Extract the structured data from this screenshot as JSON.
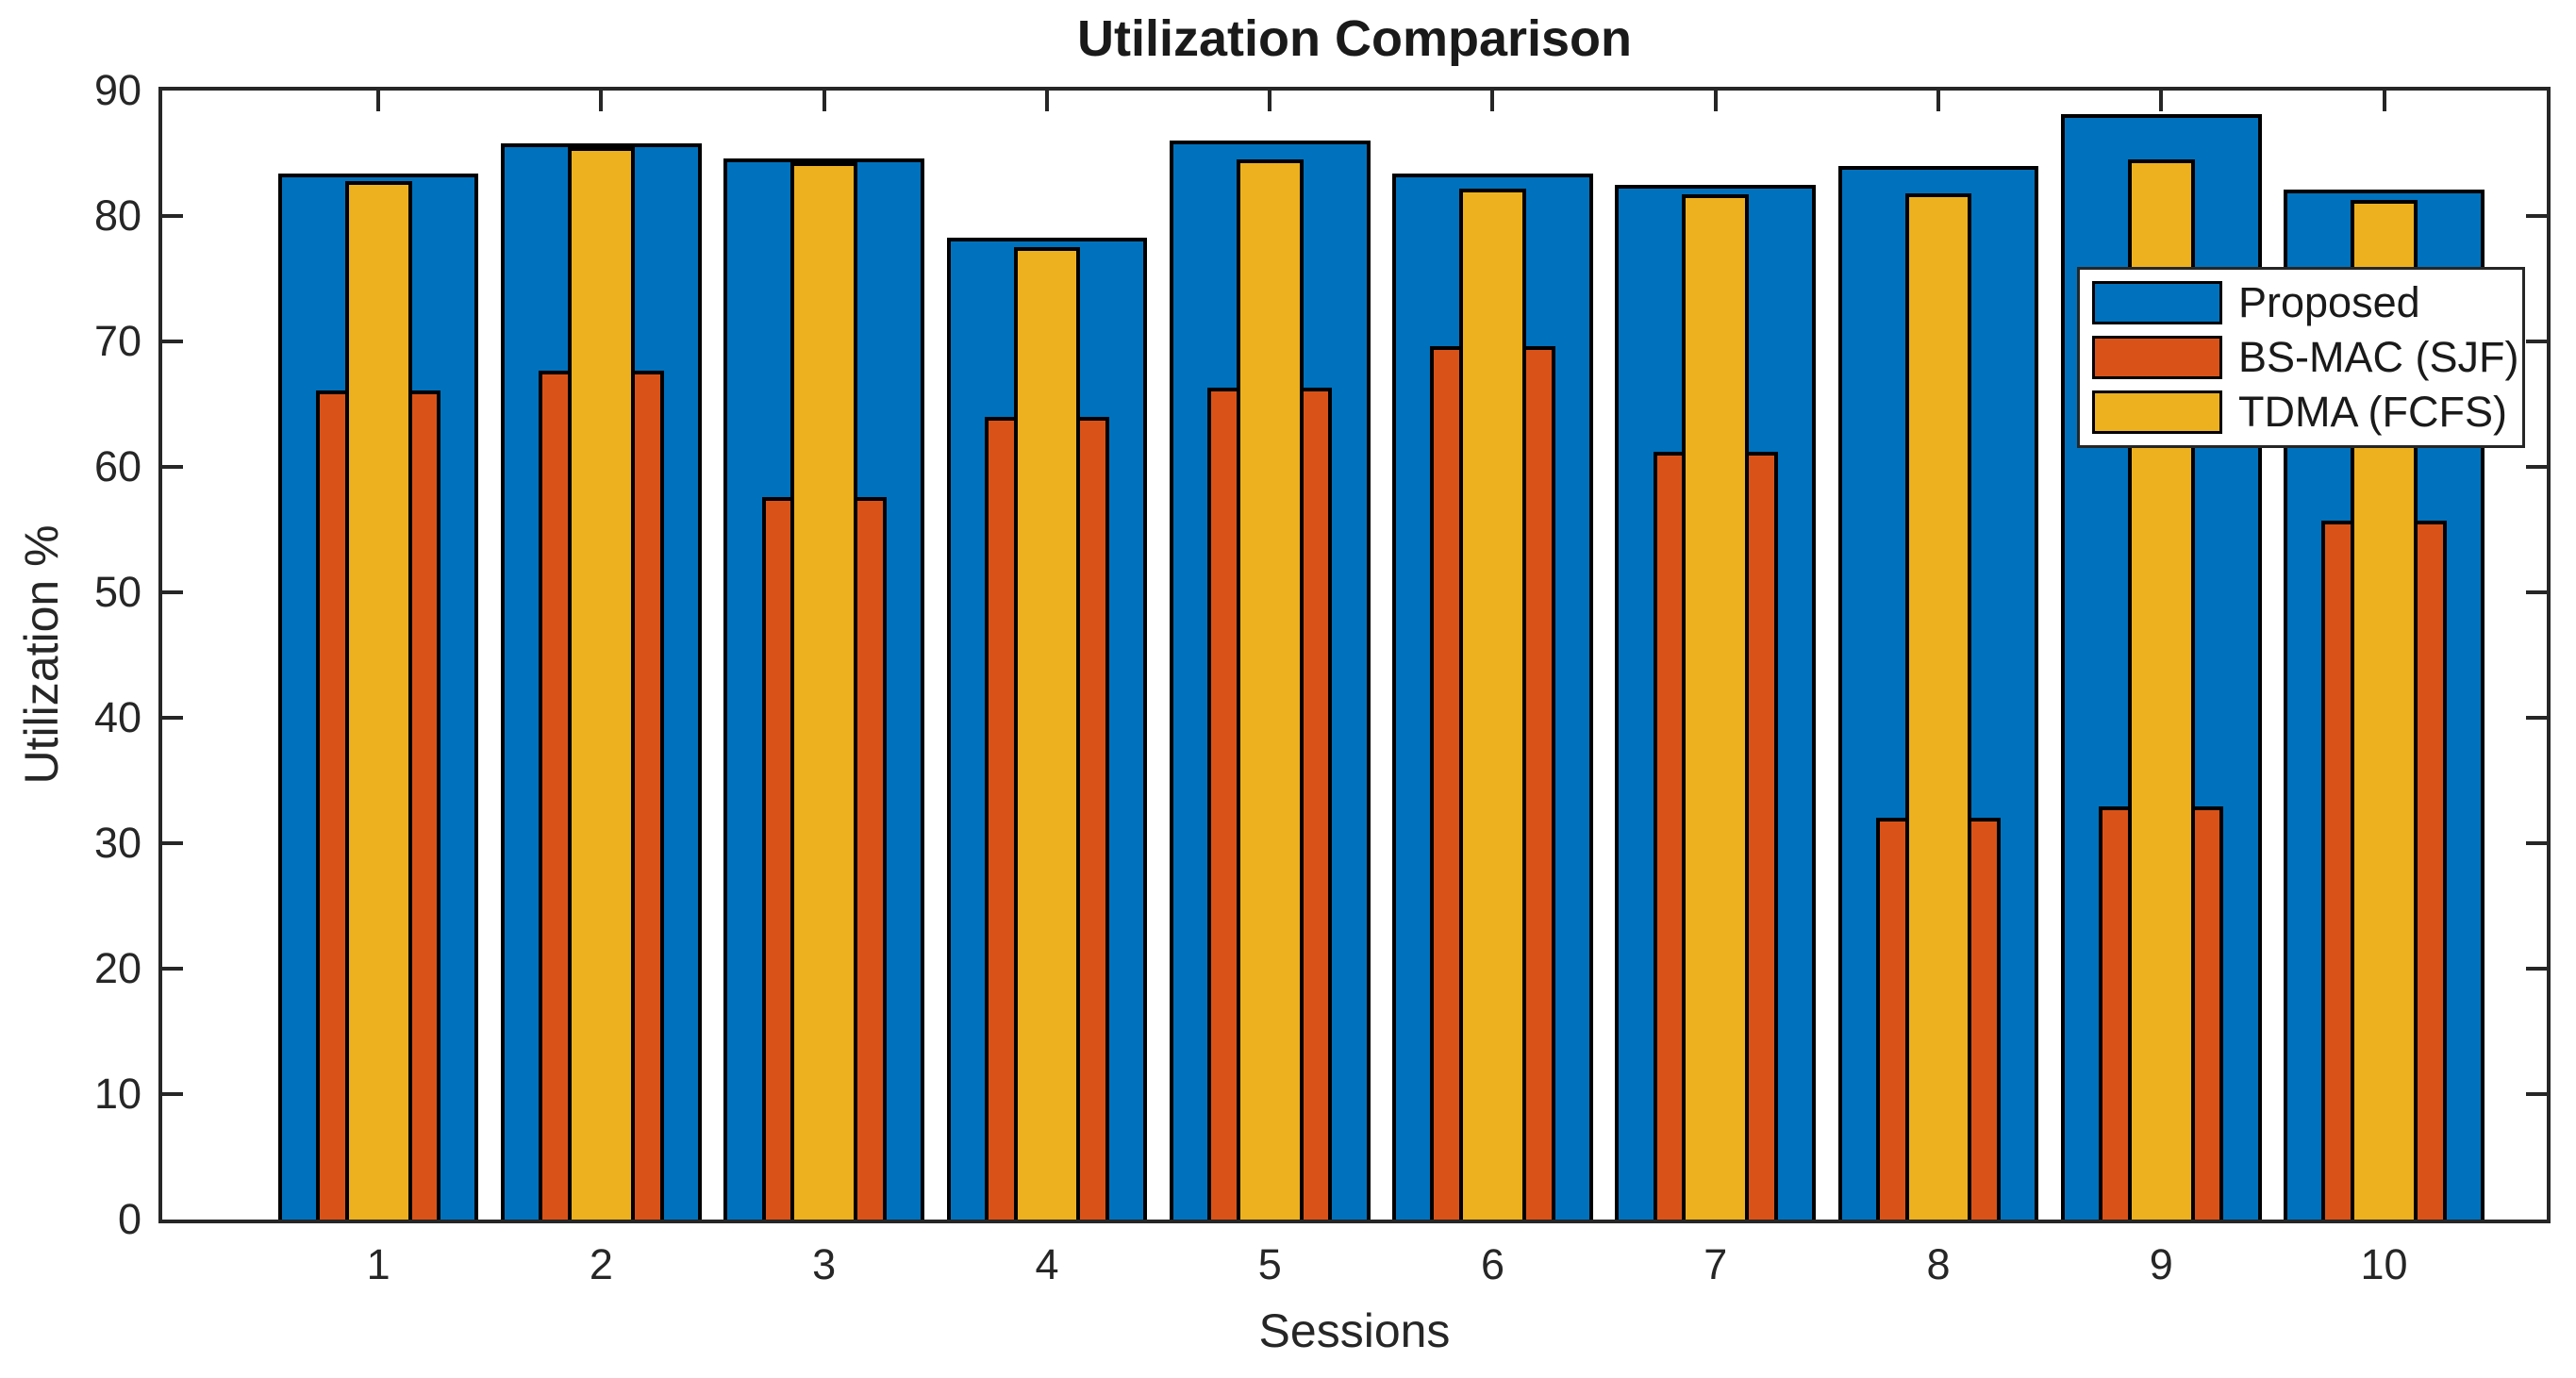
{
  "chart_data": {
    "type": "bar",
    "style": "overlaid-nested-bars",
    "title": "Utilization Comparison",
    "xlabel": "Sessions",
    "ylabel": "Utilization %",
    "categories": [
      "1",
      "2",
      "3",
      "4",
      "5",
      "6",
      "7",
      "8",
      "9",
      "10"
    ],
    "series": [
      {
        "name": "Proposed",
        "color": "#0072BD",
        "bar_width": 0.9,
        "values": [
          83.4,
          85.8,
          84.6,
          78.3,
          86.0,
          83.4,
          82.5,
          84.0,
          88.1,
          82.1
        ]
      },
      {
        "name": "BS-MAC (SJF)",
        "color": "#D95319",
        "bar_width": 0.56,
        "values": [
          66.1,
          67.7,
          57.6,
          64.0,
          66.3,
          69.6,
          61.2,
          32.0,
          32.9,
          55.7
        ]
      },
      {
        "name": "TDMA (FCFS)",
        "color": "#EDB120",
        "bar_width": 0.3,
        "values": [
          82.8,
          85.5,
          84.3,
          77.5,
          84.5,
          82.2,
          81.7,
          81.8,
          84.5,
          81.3
        ]
      }
    ],
    "ylim": [
      0,
      90
    ],
    "yticks": [
      0,
      10,
      20,
      30,
      40,
      50,
      60,
      70,
      80,
      90
    ],
    "xlim": [
      0.03,
      10.73
    ],
    "grid": false,
    "legend_position": "top-right",
    "bar_edge_color": "#000000",
    "axis_color": "#262626"
  }
}
